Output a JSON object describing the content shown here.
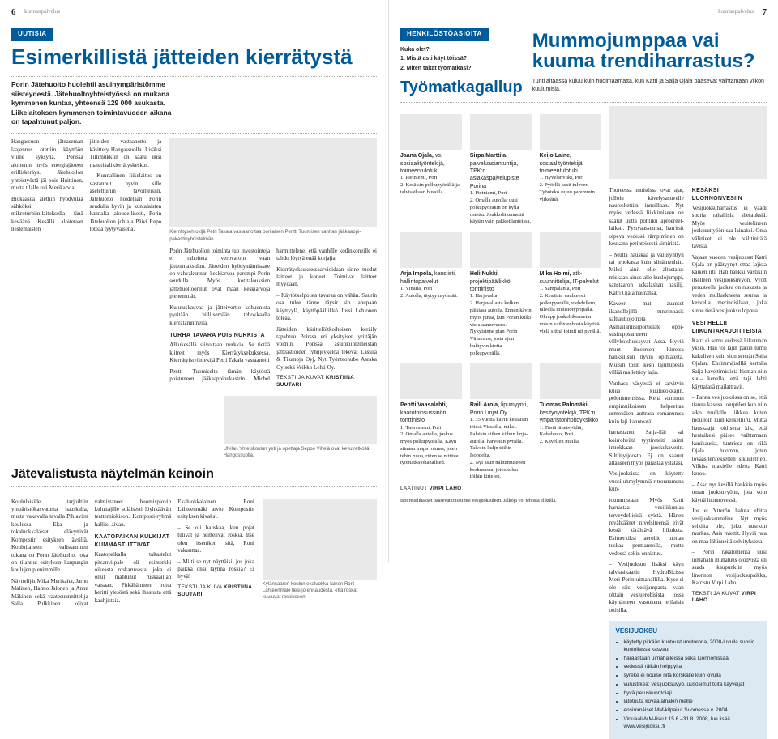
{
  "leftPage": {
    "pageNumber": "6",
    "runningHead": "kunnanpalvelus",
    "sectionBar": "UUTISIA",
    "mainHeadline": "Esimerkillistä jätteiden kierrätystä",
    "intro": "Porin Jätehuolto huolehtii asuinympäristömme siisteydestä. Jätehuoltoyhteistyössä on mukana kymmenen kuntaa, yhteensä 129 000 asukasta. Liikelaitoksen kymmenen toimintavuoden aikana on tapahtunut paljon.",
    "body1": "Hangassuon jäteaseman laajennus otettiin käyttöön viime syksynä. Porissa aloitettin myös energiajätteen erilliskeräys. Jätehuollon yhteistyöstä jäi pois Huittinen, mutta tilalle tuli Merikarvia.",
    "body2": "Biokaasua alettiin hyödyntää sähköksi mikroturbiinilaitoksella tänä keväänä. Kesällä aloitetaan neste­mäisten",
    "body3": "jätteiden vastaanotto ja käsittely Hangassuolla. Lisäksi Tillimukkiin on saatu uusi materiaalikierrätyskeskus.",
    "body4": "– Kunnallinen liikelaitos on vastannut hyvin sille asetettuihin tavoitteisiin. Jätehuolto hoidetaan Porin seudulla hyvin ja kuntalaisten kannalta taloudellisesti, Porin Jätehuollon johtaja Päivi Repo toteaa tyytyväisenä.",
    "img1Caption": "Kierrätysehtokljä Petri Takala vastaanottaa porilaisen Pentti Tuomisen vanhan jääkaappi-pakastinyhdistelmän.",
    "body5": "Porin Jätehuollon toiminta tuo investointeja ei rahoiteta verovaroin vaan jättenmaksulun. Jätteiden hyödyntämisaate on vahvakunnan keskiarvoa parempi Porin seudulla. Myös kotitalouksien jättehuoltoonnut ovat maan keskiarvoja pienemmät.",
    "body6": "Kulutuskauvaa ja jätteivortto kohuunista pyritään hillitsemään tehokkaalla kierrätämninellä.",
    "smallHead1": "TURHA TAVARA POIS NURKISTA",
    "body7": "Alkukesällä siivottaan nurkkia. Se tietää kiitreit myös Kierrätyksekuksessa. Kierrätyistyöntekijä Petri Takala vastaanotti",
    "body8": "Pentti Tuomiselta tämän käytöstä poistuneen jääkaappipukastrin. Michel harmittelene, että vanhille kodinkoneille ei tahdo löytyä enää korjajia.",
    "body9": "Kierrätysksuksessaarvioidaan sinne tuodut laitteet ja koneet. Toimivat laitteet myydään.",
    "body10": "– Käytötkelpoista tavaraa on vähän. Suurin osa tulee tänne täysir sin lapupaan käytryylä, käyttöpäällikkö Jussi Lehtonen toteaa.",
    "body11": "Jätteiden käsittelöltkoihoisen keräily tapahtuu Poirssa eri yksityisen yrittäjän voimin. Porissa asuinkiintemeistän jätteastioiden tyhnjeykelöä tekevät Lassila & Tikanoja Oyj, Nyt Työnteohubo Asraka Oy sekä Veikko Lehti Oy.",
    "byline1Label": "TEKSTI JA KUVAT",
    "byline1Name": "KRISTIINA SUUTARI",
    "secondHeadline": "Jätevalistusta näytelmän keinoin",
    "sec_body1": "Koululaisille tarjoiltiin ympäristökasvatusta hauskalla, mutta vakavalla tavalla Pihlavien koulussa. Eka- ja tokaluokkalaiset elävyttivät Kompostin esityksen täysillä. Kouluilaisten valistaminen tukana on Porin Jätehuolto, joka on tilannut esityksen kaupungin koulujen pienimmille.",
    "sec_body2": "Näyttelijät Mika Merikaita, Jarno Malinen, Hanno Jalonen ja Anne Mäkinen sekä vaatesuunnittelija Salla Pulkkinen olivat valmistaneet huomispjovin kuluttajille suläisesti löyhkäävän teatterniokison. Komposti-ryhmä hallitsi aivan.",
    "sec_smallHead": "KAATOPAIKAN KULKIJAT KUMMASTUTTIVAT",
    "sec_body3": "Kaatopaikalla taltastelut pitsanviipale oli esimerkki oikeasta roskaruuasta, joka ei ollut mahtunut ruskaailjan vatsaan. Pitkähämteen rotta heritti ylesöstä sekä ihastuita että kauhjistsia.",
    "sec_body4": "Ekaluokkalainen Roni Lähteenmäki arvioi Kompostin esityksen kivaksi.",
    "sec_body5": "– Se oli hauskaa, kun pojat tulivat ja heittelivät roskia. Itse olen itseniken sitä, Roni vakuuttaa.",
    "sec_body6": "– Milti se nyt näyttäisi, jos joka paikka olisi täynnä roskia? Ei hyvä!",
    "sec_byline1Label": "TEKSTI JA KUVA",
    "sec_byline1Name": "KRISTIINA SUUTARI",
    "img2Caption": "Kylänsaaren koulun ekaluokka-lainen Roni Lähteenmäki tiesi jo ennäudesta, että roskat kuuluvat roskikseen.",
    "img3Caption": "Ulvilan Yhteiskoulun yeti ja opettaja Seppo Vihelä ovat kevutretkollä Hangossuolla."
  },
  "rightPage": {
    "pageNumber": "7",
    "runningHead": "kunnanpalvelus",
    "sectionBar": "HENKILÖSTÖASIOITA",
    "q0": "Kuka olet?",
    "q1": "1. Mistä asti käyt töissä?",
    "q2": "2. Miten taitat työmatkasi?",
    "gallupHead": "Työmatkagallup",
    "bigHeadline": "Mummojumppaa vai kuuma trendiharrastus?",
    "lede": "Tunti altaassa kuluu kuin huoimaamatta, kun Katri ja Saija Ojala pääsevät vaihtamaan viikon kuulumisia.",
    "people": [
      {
        "name": "Jaana Ojala,",
        "title": "vs. sosiaalityöntekijä, toimeentulotuki",
        "a1": "1. Pietniemi, Pori",
        "a2": "2. Kesäisin polkupyörällä ja talvisaikaan bussilla."
      },
      {
        "name": "Sirpa Marttila,",
        "title": "palveluasiantuntija, TPK:n asiakaspalvelupiste Porina",
        "a1": "1. Pietniemi, Pori",
        "a2": "2. Omalla autolla, uusi polkupyöräkin on kyllä ostettu. Joukkoliikennettä käytän vain pakkotilanteissa."
      },
      {
        "name": "Keijo Laine,",
        "title": "sosiaalityöntekijä, toimeentulotuki",
        "a1": "1. Hyvelänviiki, Pori",
        "a2": "2. Pyörllä kesit tulever. Työnteko sujuu paremmin virkeänä."
      },
      {
        "name": "Arja Impola,",
        "title": "kanslisti, hallintopalvelut",
        "a1": "1. Vinailä, Pori",
        "a2": "2. Autolla, täytyy myöntää."
      },
      {
        "name": "Heli Nukki,",
        "title": "projektipäällikkö, tonttinisto",
        "a1": "1. Harjavalta",
        "a2": "2. Harjavallasta kulken päisiasa autolla. Ennen kävin myös junaa, kun Poriin kulki viela aamuvuoro. Nykyisinne pian Porin Väinesina, josta ajon kulhyvin kiotta polkupyorällä."
      },
      {
        "name": "Mika Holmi,",
        "title": "atk-suunnittelija, IT-palvelut",
        "a1": "1. Sampalanta, Pori",
        "a2": "2. Kesäisin vauhteesti polkupyorällä, viehdellern, talvella muustotypripällä. Okrapp joukoliikennetta voisin vaihtoenhosta käyttää vielä sittnä toimii nii pyrällä."
      },
      {
        "name": "Pentti Vaasalahti,",
        "title": "kaarotoinsussinöri, tonttinisto",
        "a1": "1. Tuorsniemi, Pori",
        "a2": "2. Omalla autolla, joskus myös polkupyorällä. Käyn siinaan inapa roimaa, joten tehin ruloa, ritten se nittitee tyomatkajohanallsed."
      },
      {
        "name": "Raili Arola,",
        "title": "lipumyynti, Porin Linjat Oy",
        "a1": "1. 35 vuotta kävin kesiaisin töissä Vissailia, miksi. Palaisin siihen kiihun linja-autolla, harvouin pyrällä. Talvoin kuljn töihin Isoodelta.",
        "a2": "2. Nyt asun nalitemuseeen keskusassa, joten tulen töihin kirtelen."
      },
      {
        "name": "Tuomas Palomäki,",
        "title": "kesityoyntekijä, TPK:n ympäristönhoito­yksikkö",
        "a1": "1. Tästä läheisyödtä, Kohaluoto, Pori",
        "a2": "2. Kävellen muilla."
      }
    ],
    "gallupBylineLabel": "LAATINUT",
    "gallupBylineName": "VIRPI LAHO",
    "art_p1": "toutumistaan. Myös Katri harrastaa vesiliikuntaa terveydellisisä syistä. Hänen revähtäänet nivelsiteensä eivät kestä tärähtävä liikuketa. Esimerkiksi aerobic tuottaa tuskaa permannolla, mutta vedessä sekin onnistuu.",
    "art_p2": "– Vesijuoksun lisäksi käyn talviasikaasin HydroBicissa Meri-Porin uimahallilla. Kyse ei ole siis vesijumpasta vaan oittain vesiuerobisista, jossa käynänteen vastukena erilaisia ottisilla.",
    "art_h1": "KESÄKSI LUONNONVESIIN",
    "art_p3": "Vesijuoksuharrastus ei vaadi suuria rahallisia sherauksiä. Myös vesitelineen joukusunyöön saa lainaksi. Oma välinieet ei ole välttinitätä tavista.",
    "art_p4": "Vajaan vuoden vesijuossut Katri Ojala on päätyynyt ottaa lajista kaiken irti. Hän hankki vastikiin itselleen vesijuoksuvyön. Vyött perusteella juoksu on raskasta ja veden mulluekneeta seuraa la kesvella merinoisilaan, joka sinne tietä vesijuoksu loppua.",
    "art_h2": "VESI HELLII LIIKUNTARAJOITTEISIA",
    "art_p5": "Katri ei sorru vedessä liikuntaan yksin. Hän toi lajin pariin tumii kukulisen kuin siunisenhän Saija Ojalan. Ensimmäisdllä kertalla Saija kaveltimistista hieman niin suu– kenella, että tajä lahti käyttafasä mailattravit.",
    "art_p6": "– Parsta vesijuoksissa on se, että tianna kasusa toiuptilen kun niin alko tuullalle liikkua kuten moulloin kuin keskelliiru. Mutta hauskaaja joitlisena kik, että hentaikesi päisee vaihtamaan kunikausia, tuntrissa on rikä Ojala huomnn, joten lovaasiteriteksetten sikuulstriep. Vilkisa makielle edesta Katri keroo.",
    "art_p7": "– Asso nyt kesillä hankkia myös oman juoksuvyönn, jota voin käyttä luonnovessä.",
    "art_p8": "Jos ei Ytterön haluta ehitta vesijuoksuntteline. Nyt myös seikiita ole, joku uusrkun murkaa. Asia miettit. Hyviä rata on maa lähinneitä selvityksteta.",
    "art_p9": "– Porin rakatomenta uusi uimahalli muhatuus olodyista eli saada kaupunkiin myös linonnon vesijuoksupaikka, Katristu Virpi Laho.",
    "art_p10": "Tuoreessa muistissa ovat ajat, jolloin kävelysasuvelle naureskettiin innoillaan. Nyt myös vedessä liikkimiseen on saatut uutta pohtiku aproereel- laiksti. Pystyaassumsa, harritsit oipeva vedessä rämpiminen on keukana perinteisestä simiristä.",
    "art_p11": "– Mutta hauskaa ja vallisyhttyn tai tehokasta kuin siinäinenhän. Miksi ainit olle altastatus miskaan ainos alle kuulojumppi, sanstaaron ackalashan hasilij. Katri Ojala naurahsa.",
    "art_p12": "Kaveeri mat auanset ilsanollejillä tuntrinnasis salttauttojotnota Asmailanlisiiportielate oppi-susituppsamreen villykoishuissyvat Assa. Hyviä muut ihssursen kirretsa hanksilisun hyvin opihtateita. Muisin tosin kesti tajunupesta villää mallettioy lajia.",
    "art_p13": "Vanhasa väsyestä ei tarvitvin kuua kuulueokkajin, pelouimeitsissa. Kehä sommun empimuikoissen helpeettaa urmouäien auttrasa romanumsa kuin laji kannteatä.",
    "art_p14": "harrastanut Saija-iläi sai koirroheiltä tyytireteiti saimi innokkaan juoskukaverin. Siltiinyijoosto Ej on saanut altaaseen myös parastaa ystatäsi.",
    "art_p15": "Vesijuoksissa on käytetty vuosijuhmylymniä ritronnamena kun-",
    "art_bylineLabel": "TEKSTI JA KUVAT",
    "art_bylineName": "VIRPI LAHO",
    "box_head": "VESIJUOKSU",
    "box_items": [
      "käytetty pitkään kuntoustumutorona, 2000-luvulla suosio kuntoilassa kasvaut",
      "haraastaan uimahalleissa sekä luonnonissää",
      "vedessä räikän helppyita",
      "syreke ei nouise nita korskalle kuin kivulla",
      "vurustrkea: vesijuoksuvyö, uusosimut toita käyveijät",
      "hyvä peruskunntoiaji",
      "latotuuta kovaa alnakin mellie",
      "ensimmäiset MM-kilpailut Suomessa v. 2004",
      "Virtuaali-MM-liskut 15.6.–31.8. 2008, lue lisää www.vesijuoksu.fi"
    ],
    "isot_note": "Isot reisilihakset pääsevät töisstimoi vesijuoksuleen. Jalkoja voi tehostä elikulla."
  },
  "colors": {
    "blue": "#005b9a",
    "boxbg": "#dce9f2",
    "ph": "#e9e9e9"
  }
}
